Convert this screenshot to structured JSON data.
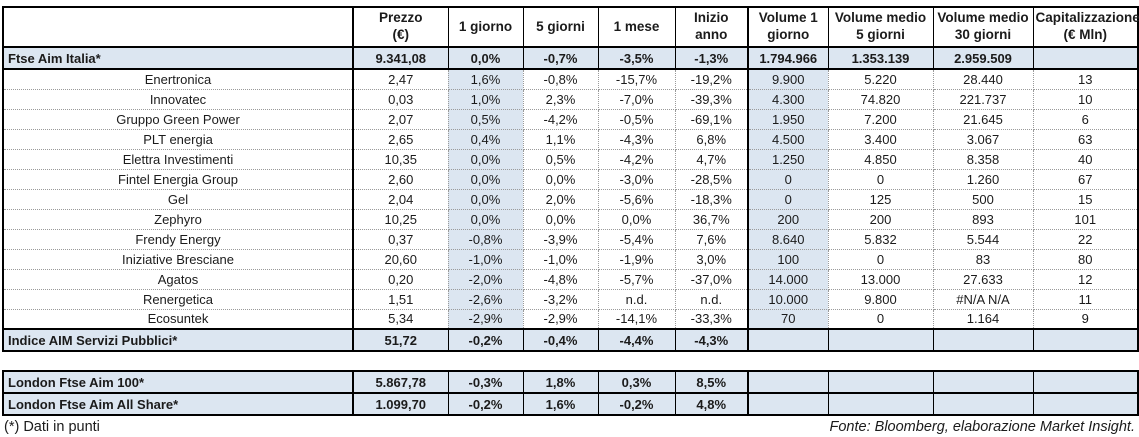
{
  "colors": {
    "highlight_fill": "#dce6f1",
    "border": "#000000",
    "dotted_border": "#9a9a9a"
  },
  "main_table": {
    "columns": [
      "",
      "Prezzo\n(€)",
      "1 giorno",
      "5 giorni",
      "1 mese",
      "Inizio anno",
      "Volume 1\ngiorno",
      "Volume medio\n5 giorni",
      "Volume medio\n30 giorni",
      "Capitalizzazione\n(€ Mln)"
    ],
    "rows": [
      {
        "type": "index",
        "cells": [
          "Ftse Aim Italia*",
          "9.341,08",
          "0,0%",
          "-0,7%",
          "-3,5%",
          "-1,3%",
          "1.794.966",
          "1.353.139",
          "2.959.509",
          ""
        ]
      },
      {
        "type": "stock",
        "cells": [
          "Enertronica",
          "2,47",
          "1,6%",
          "-0,8%",
          "-15,7%",
          "-19,2%",
          "9.900",
          "5.220",
          "28.440",
          "13"
        ]
      },
      {
        "type": "stock",
        "cells": [
          "Innovatec",
          "0,03",
          "1,0%",
          "2,3%",
          "-7,0%",
          "-39,3%",
          "4.300",
          "74.820",
          "221.737",
          "10"
        ]
      },
      {
        "type": "stock",
        "cells": [
          "Gruppo Green Power",
          "2,07",
          "0,5%",
          "-4,2%",
          "-0,5%",
          "-69,1%",
          "1.950",
          "7.200",
          "21.645",
          "6"
        ]
      },
      {
        "type": "stock",
        "cells": [
          "PLT energia",
          "2,65",
          "0,4%",
          "1,1%",
          "-4,3%",
          "6,8%",
          "4.500",
          "3.400",
          "3.067",
          "63"
        ]
      },
      {
        "type": "stock",
        "cells": [
          "Elettra Investimenti",
          "10,35",
          "0,0%",
          "0,5%",
          "-4,2%",
          "4,7%",
          "1.250",
          "4.850",
          "8.358",
          "40"
        ]
      },
      {
        "type": "stock",
        "cells": [
          "Fintel Energia Group",
          "2,60",
          "0,0%",
          "0,0%",
          "-3,0%",
          "-28,5%",
          "0",
          "0",
          "1.260",
          "67"
        ]
      },
      {
        "type": "stock",
        "cells": [
          "Gel",
          "2,04",
          "0,0%",
          "2,0%",
          "-5,6%",
          "-18,3%",
          "0",
          "125",
          "500",
          "15"
        ]
      },
      {
        "type": "stock",
        "cells": [
          "Zephyro",
          "10,25",
          "0,0%",
          "0,0%",
          "0,0%",
          "36,7%",
          "200",
          "200",
          "893",
          "101"
        ]
      },
      {
        "type": "stock",
        "cells": [
          "Frendy Energy",
          "0,37",
          "-0,8%",
          "-3,9%",
          "-5,4%",
          "7,6%",
          "8.640",
          "5.832",
          "5.544",
          "22"
        ]
      },
      {
        "type": "stock",
        "cells": [
          "Iniziative Bresciane",
          "20,60",
          "-1,0%",
          "-1,0%",
          "-1,9%",
          "3,0%",
          "100",
          "0",
          "83",
          "80"
        ]
      },
      {
        "type": "stock",
        "cells": [
          "Agatos",
          "0,20",
          "-2,0%",
          "-4,8%",
          "-5,7%",
          "-37,0%",
          "14.000",
          "13.000",
          "27.633",
          "12"
        ]
      },
      {
        "type": "stock",
        "cells": [
          "Renergetica",
          "1,51",
          "-2,6%",
          "-3,2%",
          "n.d.",
          "n.d.",
          "10.000",
          "9.800",
          "#N/A N/A",
          "11"
        ]
      },
      {
        "type": "stock",
        "cells": [
          "Ecosuntek",
          "5,34",
          "-2,9%",
          "-2,9%",
          "-14,1%",
          "-33,3%",
          "70",
          "0",
          "1.164",
          "9"
        ]
      },
      {
        "type": "index",
        "cells": [
          "Indice AIM Servizi Pubblici*",
          "51,72",
          "-0,2%",
          "-0,4%",
          "-4,4%",
          "-4,3%",
          "",
          "",
          "",
          ""
        ]
      }
    ]
  },
  "london_table": {
    "rows": [
      {
        "type": "index",
        "cells": [
          "London Ftse Aim 100*",
          "5.867,78",
          "-0,3%",
          "1,8%",
          "0,3%",
          "8,5%",
          "",
          "",
          "",
          ""
        ]
      },
      {
        "type": "index",
        "cells": [
          "London Ftse Aim All Share*",
          "1.099,70",
          "-0,2%",
          "1,6%",
          "-0,2%",
          "4,8%",
          "",
          "",
          "",
          ""
        ]
      }
    ]
  },
  "footer": {
    "note": "(*) Dati in punti",
    "source": "Fonte: Bloomberg, elaborazione Market Insight."
  }
}
